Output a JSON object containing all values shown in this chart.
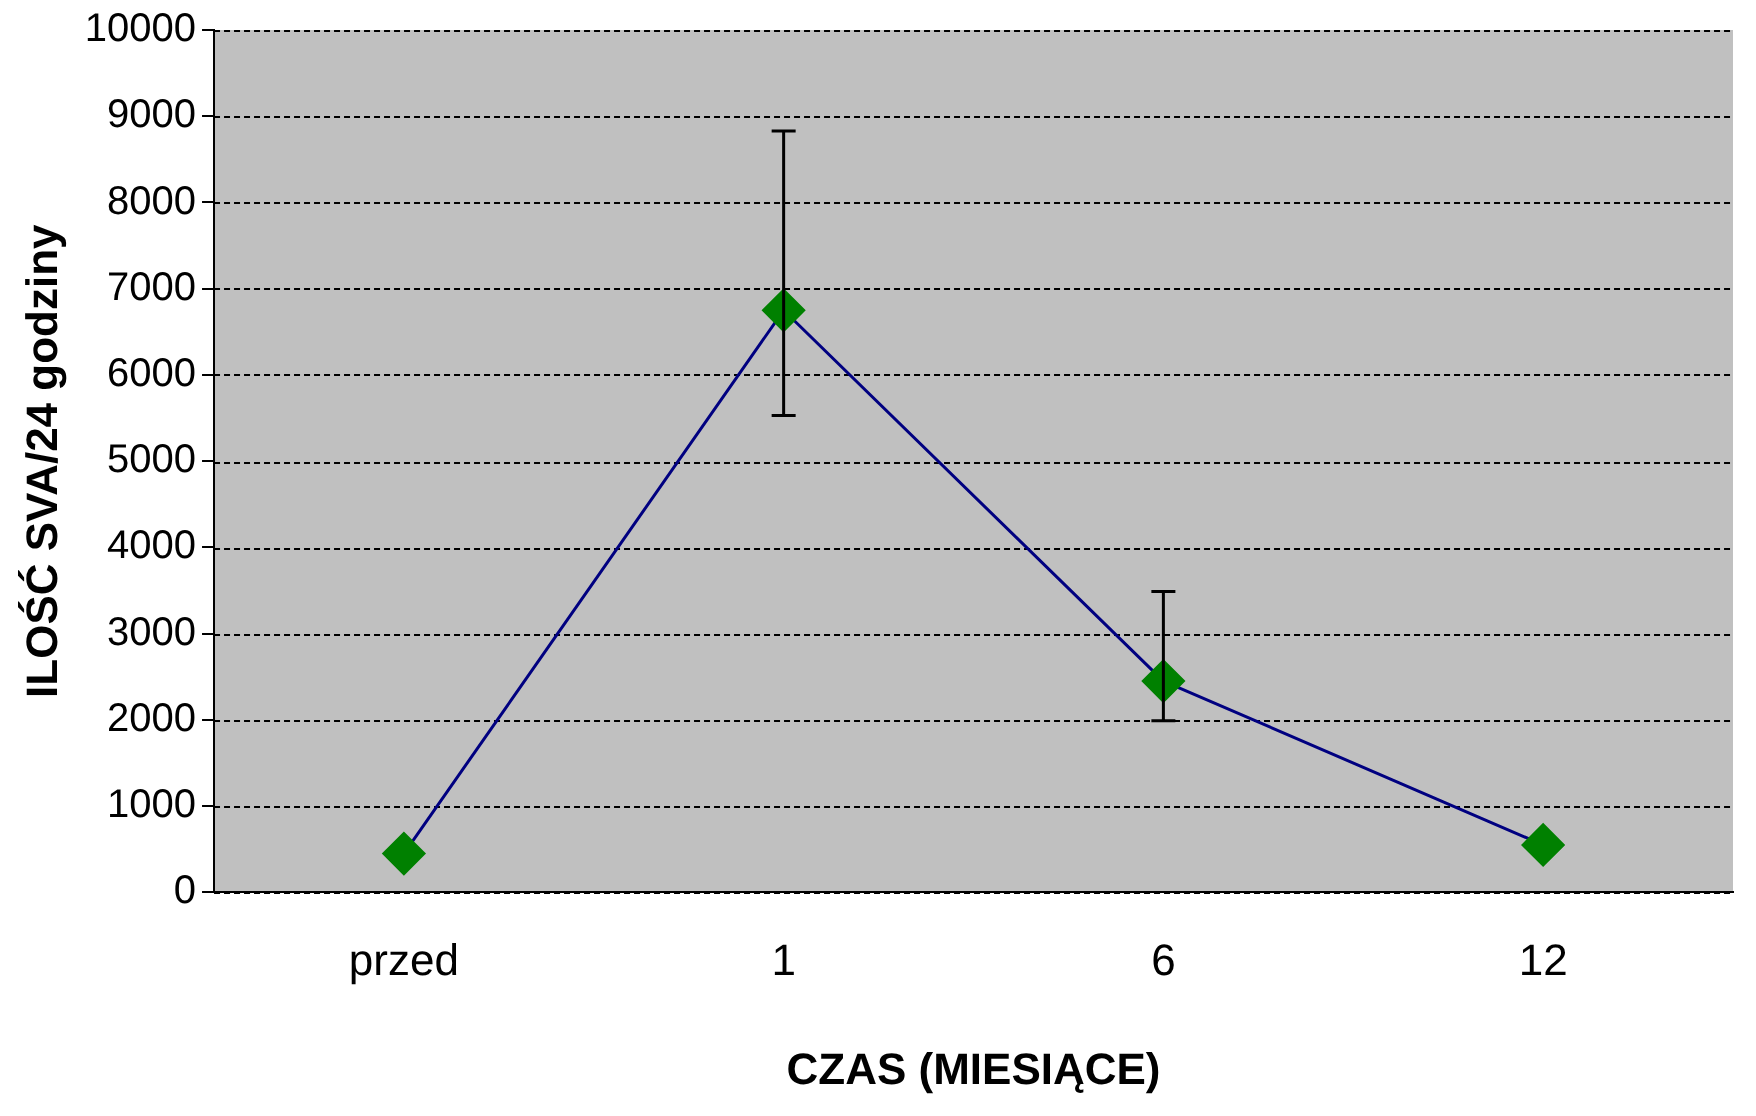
{
  "chart_data": {
    "type": "line",
    "xlabel": "CZAS (MIESIĄCE)",
    "ylabel": "ILOŚĆ SVA/24 godziny",
    "categories": [
      "przed",
      "1",
      "6",
      "12"
    ],
    "series": [
      {
        "color": "#000080",
        "colors": [
          "#008000",
          "#008000",
          "#008000",
          "#008000"
        ],
        "values": [
          450,
          6750,
          2450,
          550
        ],
        "errors": [
          null,
          [
            5530,
            8830
          ],
          [
            1990,
            3490
          ],
          null
        ]
      }
    ],
    "ylim": [
      0,
      10000
    ],
    "yticks": [
      0,
      1000,
      2000,
      3000,
      4000,
      5000,
      6000,
      7000,
      8000,
      9000,
      10000
    ],
    "grid": "y",
    "marker": "diamond",
    "line_style": "solid",
    "legend": false
  }
}
